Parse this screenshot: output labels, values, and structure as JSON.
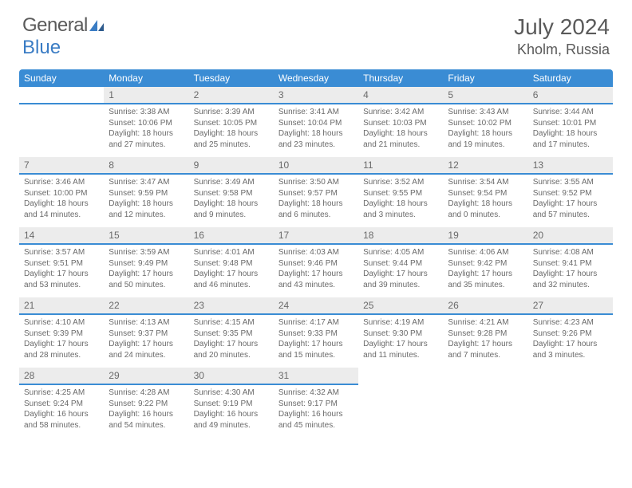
{
  "logo": {
    "part1": "General",
    "part2": "Blue"
  },
  "title": "July 2024",
  "location": "Kholm, Russia",
  "colors": {
    "header_bg": "#3a8cd4",
    "header_text": "#ffffff",
    "daynum_bg": "#ececec",
    "border": "#3a8cd4",
    "text": "#6a6a6a",
    "logo_gray": "#5a5a5a",
    "logo_blue": "#3a7cc4"
  },
  "weekdays": [
    "Sunday",
    "Monday",
    "Tuesday",
    "Wednesday",
    "Thursday",
    "Friday",
    "Saturday"
  ],
  "start_offset": 1,
  "days": [
    {
      "n": 1,
      "sr": "3:38 AM",
      "ss": "10:06 PM",
      "dl": "18 hours and 27 minutes."
    },
    {
      "n": 2,
      "sr": "3:39 AM",
      "ss": "10:05 PM",
      "dl": "18 hours and 25 minutes."
    },
    {
      "n": 3,
      "sr": "3:41 AM",
      "ss": "10:04 PM",
      "dl": "18 hours and 23 minutes."
    },
    {
      "n": 4,
      "sr": "3:42 AM",
      "ss": "10:03 PM",
      "dl": "18 hours and 21 minutes."
    },
    {
      "n": 5,
      "sr": "3:43 AM",
      "ss": "10:02 PM",
      "dl": "18 hours and 19 minutes."
    },
    {
      "n": 6,
      "sr": "3:44 AM",
      "ss": "10:01 PM",
      "dl": "18 hours and 17 minutes."
    },
    {
      "n": 7,
      "sr": "3:46 AM",
      "ss": "10:00 PM",
      "dl": "18 hours and 14 minutes."
    },
    {
      "n": 8,
      "sr": "3:47 AM",
      "ss": "9:59 PM",
      "dl": "18 hours and 12 minutes."
    },
    {
      "n": 9,
      "sr": "3:49 AM",
      "ss": "9:58 PM",
      "dl": "18 hours and 9 minutes."
    },
    {
      "n": 10,
      "sr": "3:50 AM",
      "ss": "9:57 PM",
      "dl": "18 hours and 6 minutes."
    },
    {
      "n": 11,
      "sr": "3:52 AM",
      "ss": "9:55 PM",
      "dl": "18 hours and 3 minutes."
    },
    {
      "n": 12,
      "sr": "3:54 AM",
      "ss": "9:54 PM",
      "dl": "18 hours and 0 minutes."
    },
    {
      "n": 13,
      "sr": "3:55 AM",
      "ss": "9:52 PM",
      "dl": "17 hours and 57 minutes."
    },
    {
      "n": 14,
      "sr": "3:57 AM",
      "ss": "9:51 PM",
      "dl": "17 hours and 53 minutes."
    },
    {
      "n": 15,
      "sr": "3:59 AM",
      "ss": "9:49 PM",
      "dl": "17 hours and 50 minutes."
    },
    {
      "n": 16,
      "sr": "4:01 AM",
      "ss": "9:48 PM",
      "dl": "17 hours and 46 minutes."
    },
    {
      "n": 17,
      "sr": "4:03 AM",
      "ss": "9:46 PM",
      "dl": "17 hours and 43 minutes."
    },
    {
      "n": 18,
      "sr": "4:05 AM",
      "ss": "9:44 PM",
      "dl": "17 hours and 39 minutes."
    },
    {
      "n": 19,
      "sr": "4:06 AM",
      "ss": "9:42 PM",
      "dl": "17 hours and 35 minutes."
    },
    {
      "n": 20,
      "sr": "4:08 AM",
      "ss": "9:41 PM",
      "dl": "17 hours and 32 minutes."
    },
    {
      "n": 21,
      "sr": "4:10 AM",
      "ss": "9:39 PM",
      "dl": "17 hours and 28 minutes."
    },
    {
      "n": 22,
      "sr": "4:13 AM",
      "ss": "9:37 PM",
      "dl": "17 hours and 24 minutes."
    },
    {
      "n": 23,
      "sr": "4:15 AM",
      "ss": "9:35 PM",
      "dl": "17 hours and 20 minutes."
    },
    {
      "n": 24,
      "sr": "4:17 AM",
      "ss": "9:33 PM",
      "dl": "17 hours and 15 minutes."
    },
    {
      "n": 25,
      "sr": "4:19 AM",
      "ss": "9:30 PM",
      "dl": "17 hours and 11 minutes."
    },
    {
      "n": 26,
      "sr": "4:21 AM",
      "ss": "9:28 PM",
      "dl": "17 hours and 7 minutes."
    },
    {
      "n": 27,
      "sr": "4:23 AM",
      "ss": "9:26 PM",
      "dl": "17 hours and 3 minutes."
    },
    {
      "n": 28,
      "sr": "4:25 AM",
      "ss": "9:24 PM",
      "dl": "16 hours and 58 minutes."
    },
    {
      "n": 29,
      "sr": "4:28 AM",
      "ss": "9:22 PM",
      "dl": "16 hours and 54 minutes."
    },
    {
      "n": 30,
      "sr": "4:30 AM",
      "ss": "9:19 PM",
      "dl": "16 hours and 49 minutes."
    },
    {
      "n": 31,
      "sr": "4:32 AM",
      "ss": "9:17 PM",
      "dl": "16 hours and 45 minutes."
    }
  ],
  "labels": {
    "sunrise": "Sunrise:",
    "sunset": "Sunset:",
    "daylight": "Daylight:"
  }
}
